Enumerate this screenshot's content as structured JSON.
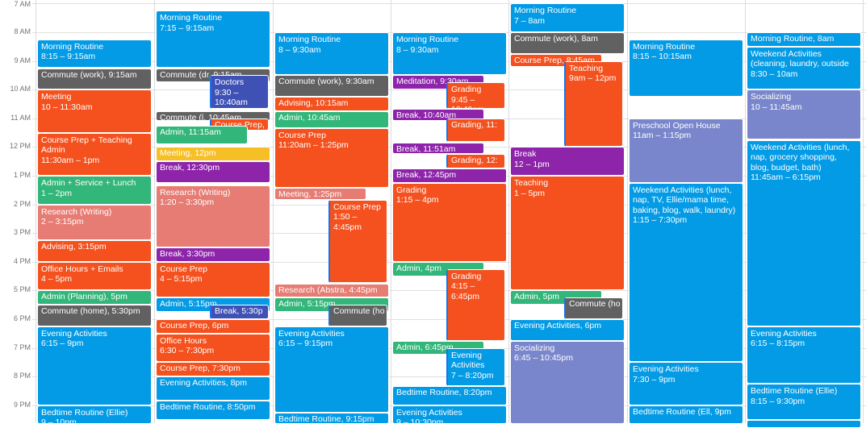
{
  "colors": {
    "blue": "#039be5",
    "gray": "#616161",
    "tomato": "#f4511e",
    "flamingo": "#e67c73",
    "green": "#33b679",
    "yellow": "#f6bf26",
    "purple": "#8e24aa",
    "navy": "#3f51b5",
    "lavender": "#7986cb"
  },
  "hours": [
    "7 AM",
    "8 AM",
    "9 AM",
    "10 AM",
    "11 AM",
    "12 PM",
    "1 PM",
    "2 PM",
    "3 PM",
    "4 PM",
    "5 PM",
    "6 PM",
    "7 PM",
    "8 PM",
    "9 PM"
  ],
  "days": [
    {
      "events": [
        {
          "title": "Morning Routine",
          "time": "8:15 – 9:15am",
          "start": 8.25,
          "end": 9.25,
          "color": "blue",
          "lane": 0,
          "lanes": 1
        },
        {
          "title": "Commute (work)",
          "time": "9:15am",
          "start": 9.25,
          "end": 10.0,
          "color": "gray",
          "lane": 0,
          "lanes": 1,
          "inline": true
        },
        {
          "title": "Meeting",
          "time": "10 – 11:30am",
          "start": 10.0,
          "end": 11.5,
          "color": "tomato",
          "lane": 0,
          "lanes": 1
        },
        {
          "title": "Course Prep + Teaching Admin",
          "time": "11:30am – 1pm",
          "start": 11.5,
          "end": 13.0,
          "color": "tomato",
          "lane": 0,
          "lanes": 1
        },
        {
          "title": "Admin + Service + Lunch",
          "time": "1 – 2pm",
          "start": 13.0,
          "end": 14.0,
          "color": "green",
          "lane": 0,
          "lanes": 1
        },
        {
          "title": "Research (Writing)",
          "time": "2 – 3:15pm",
          "start": 14.0,
          "end": 15.25,
          "color": "flamingo",
          "lane": 0,
          "lanes": 1
        },
        {
          "title": "Advising",
          "time": "3:15pm",
          "start": 15.25,
          "end": 16.0,
          "color": "tomato",
          "lane": 0,
          "lanes": 1,
          "inline": true
        },
        {
          "title": "Office Hours + Emails",
          "time": "4 – 5pm",
          "start": 16.0,
          "end": 17.0,
          "color": "tomato",
          "lane": 0,
          "lanes": 1
        },
        {
          "title": "Admin (Planning)",
          "time": "5pm",
          "start": 17.0,
          "end": 17.5,
          "color": "green",
          "lane": 0,
          "lanes": 1,
          "inline": true
        },
        {
          "title": "Commute (home)",
          "time": "5:30pm",
          "start": 17.5,
          "end": 18.25,
          "color": "gray",
          "lane": 0,
          "lanes": 1,
          "inline": true
        },
        {
          "title": "Evening Activities",
          "time": "6:15 – 9pm",
          "start": 18.25,
          "end": 21.0,
          "color": "blue",
          "lane": 0,
          "lanes": 1
        },
        {
          "title": "Bedtime Routine (Ellie)",
          "time": "9 – 10pm",
          "start": 21.0,
          "end": 22.0,
          "color": "blue",
          "lane": 0,
          "lanes": 1
        }
      ]
    },
    {
      "events": [
        {
          "title": "Morning Routine",
          "time": "7:15 – 9:15am",
          "start": 7.25,
          "end": 9.25,
          "color": "blue",
          "lane": 0,
          "lanes": 1
        },
        {
          "title": "Commute (dr",
          "time": "9:15am",
          "start": 9.25,
          "end": 9.75,
          "color": "gray",
          "lane": 0,
          "lanes": 1,
          "inline": true
        },
        {
          "title": "Doctors",
          "time": "9:30 – 10:40am",
          "start": 9.5,
          "end": 10.667,
          "color": "navy",
          "lane": 1,
          "lanes": 2
        },
        {
          "title": "Commute (l",
          "time": "10:45am",
          "start": 10.75,
          "end": 11.083,
          "color": "gray",
          "lane": 0,
          "lanes": 1,
          "inline": true
        },
        {
          "title": "Course Prep,",
          "time": "",
          "start": 11.0,
          "end": 11.417,
          "color": "tomato",
          "lane": 1,
          "lanes": 2,
          "inline": true
        },
        {
          "title": "Admin",
          "time": "11:15am",
          "start": 11.25,
          "end": 11.917,
          "color": "green",
          "lane": 0,
          "lanes": 1,
          "inline": true,
          "w": 0.8
        },
        {
          "title": "Meeting",
          "time": "12pm",
          "start": 12.0,
          "end": 12.5,
          "color": "yellow",
          "lane": 0,
          "lanes": 1,
          "inline": true
        },
        {
          "title": "Break",
          "time": "12:30pm",
          "start": 12.5,
          "end": 13.25,
          "color": "purple",
          "lane": 0,
          "lanes": 1,
          "inline": true
        },
        {
          "title": "Research (Writing)",
          "time": "1:20 – 3:30pm",
          "start": 13.333,
          "end": 15.5,
          "color": "flamingo",
          "lane": 0,
          "lanes": 1
        },
        {
          "title": "Break",
          "time": "3:30pm",
          "start": 15.5,
          "end": 16.0,
          "color": "purple",
          "lane": 0,
          "lanes": 1,
          "inline": true
        },
        {
          "title": "Course Prep",
          "time": "4 – 5:15pm",
          "start": 16.0,
          "end": 17.25,
          "color": "tomato",
          "lane": 0,
          "lanes": 1
        },
        {
          "title": "Admin",
          "time": "5:15pm",
          "start": 17.25,
          "end": 17.75,
          "color": "blue",
          "lane": 0,
          "lanes": 1,
          "inline": true
        },
        {
          "title": "Break",
          "time": "5:30p",
          "start": 17.5,
          "end": 18.0,
          "color": "navy",
          "lane": 1,
          "lanes": 2,
          "inline": true
        },
        {
          "title": "Course Prep",
          "time": "6pm",
          "start": 18.0,
          "end": 18.5,
          "color": "tomato",
          "lane": 0,
          "lanes": 1,
          "inline": true
        },
        {
          "title": "Office Hours",
          "time": "6:30 – 7:30pm",
          "start": 18.5,
          "end": 19.5,
          "color": "tomato",
          "lane": 0,
          "lanes": 1
        },
        {
          "title": "Course Prep",
          "time": "7:30pm",
          "start": 19.5,
          "end": 20.0,
          "color": "tomato",
          "lane": 0,
          "lanes": 1,
          "inline": true
        },
        {
          "title": "Evening Activities",
          "time": "8pm",
          "start": 20.0,
          "end": 20.833,
          "color": "blue",
          "lane": 0,
          "lanes": 1,
          "inline": true
        },
        {
          "title": "Bedtime Routine",
          "time": "8:50pm",
          "start": 20.833,
          "end": 21.5,
          "color": "blue",
          "lane": 0,
          "lanes": 1,
          "inline": true
        }
      ]
    },
    {
      "events": [
        {
          "title": "Morning Routine",
          "time": "8 – 9:30am",
          "start": 8.0,
          "end": 9.5,
          "color": "blue",
          "lane": 0,
          "lanes": 1
        },
        {
          "title": "Commute (work)",
          "time": "9:30am",
          "start": 9.5,
          "end": 10.25,
          "color": "gray",
          "lane": 0,
          "lanes": 1,
          "inline": true
        },
        {
          "title": "Advising",
          "time": "10:15am",
          "start": 10.25,
          "end": 10.75,
          "color": "tomato",
          "lane": 0,
          "lanes": 1,
          "inline": true
        },
        {
          "title": "Admin",
          "time": "10:45am",
          "start": 10.75,
          "end": 11.333,
          "color": "green",
          "lane": 0,
          "lanes": 1,
          "inline": true
        },
        {
          "title": "Course Prep",
          "time": "11:20am – 1:25pm",
          "start": 11.333,
          "end": 13.417,
          "color": "tomato",
          "lane": 0,
          "lanes": 1
        },
        {
          "title": "Meeting",
          "time": "1:25pm",
          "start": 13.417,
          "end": 13.833,
          "color": "flamingo",
          "lane": 0,
          "lanes": 1,
          "inline": true,
          "w": 0.8
        },
        {
          "title": "Course Prep",
          "time": "1:50 – 4:45pm",
          "start": 13.833,
          "end": 16.75,
          "color": "tomato",
          "lane": 1,
          "lanes": 2
        },
        {
          "title": "Research (Abstra",
          "time": "4:45pm",
          "start": 16.75,
          "end": 17.25,
          "color": "flamingo",
          "lane": 0,
          "lanes": 1,
          "inline": true
        },
        {
          "title": "Admin",
          "time": "5:15pm",
          "start": 17.25,
          "end": 17.75,
          "color": "green",
          "lane": 0,
          "lanes": 1,
          "inline": true
        },
        {
          "title": "Commute (ho",
          "time": "",
          "start": 17.5,
          "end": 18.25,
          "color": "gray",
          "lane": 1,
          "lanes": 2,
          "inline": true
        },
        {
          "title": "Evening Activities",
          "time": "6:15 – 9:15pm",
          "start": 18.25,
          "end": 21.25,
          "color": "blue",
          "lane": 0,
          "lanes": 1
        },
        {
          "title": "Bedtime Routine",
          "time": "9:15pm",
          "start": 21.25,
          "end": 22.0,
          "color": "blue",
          "lane": 0,
          "lanes": 1,
          "inline": true
        }
      ]
    },
    {
      "events": [
        {
          "title": "Morning Routine",
          "time": "8 – 9:30am",
          "start": 8.0,
          "end": 9.5,
          "color": "blue",
          "lane": 0,
          "lanes": 1
        },
        {
          "title": "Meditation",
          "time": "9:30am",
          "start": 9.5,
          "end": 10.0,
          "color": "purple",
          "lane": 0,
          "lanes": 1,
          "inline": true,
          "w": 0.8
        },
        {
          "title": "Grading",
          "time": "9:45 – 10:40am",
          "start": 9.75,
          "end": 10.667,
          "color": "tomato",
          "lane": 1,
          "lanes": 2
        },
        {
          "title": "Break",
          "time": "10:40am",
          "start": 10.667,
          "end": 11.083,
          "color": "purple",
          "lane": 0,
          "lanes": 1,
          "inline": true,
          "w": 0.8
        },
        {
          "title": "Grading",
          "time": "11:",
          "start": 11.0,
          "end": 11.833,
          "color": "tomato",
          "lane": 1,
          "lanes": 2,
          "inline": true
        },
        {
          "title": "Break",
          "time": "11:51am",
          "start": 11.85,
          "end": 12.25,
          "color": "purple",
          "lane": 0,
          "lanes": 1,
          "inline": true,
          "w": 0.8
        },
        {
          "title": "Grading",
          "time": "12:",
          "start": 12.25,
          "end": 12.75,
          "color": "tomato",
          "lane": 1,
          "lanes": 2,
          "inline": true
        },
        {
          "title": "Break",
          "time": "12:45pm",
          "start": 12.75,
          "end": 13.25,
          "color": "purple",
          "lane": 0,
          "lanes": 1,
          "inline": true
        },
        {
          "title": "Grading",
          "time": "1:15 – 4pm",
          "start": 13.25,
          "end": 16.0,
          "color": "tomato",
          "lane": 0,
          "lanes": 1
        },
        {
          "title": "Admin",
          "time": "4pm",
          "start": 16.0,
          "end": 16.5,
          "color": "green",
          "lane": 0,
          "lanes": 1,
          "inline": true,
          "w": 0.8
        },
        {
          "title": "Grading",
          "time": "4:15 – 6:45pm",
          "start": 16.25,
          "end": 18.75,
          "color": "tomato",
          "lane": 1,
          "lanes": 2
        },
        {
          "title": "Admin",
          "time": "6:45pm",
          "start": 18.75,
          "end": 19.25,
          "color": "green",
          "lane": 0,
          "lanes": 1,
          "inline": true,
          "w": 0.8
        },
        {
          "title": "Evening Activities",
          "time": "7 – 8:20pm",
          "start": 19.0,
          "end": 20.333,
          "color": "blue",
          "lane": 1,
          "lanes": 2
        },
        {
          "title": "Bedtime Routine",
          "time": "8:20pm",
          "start": 20.333,
          "end": 21.0,
          "color": "blue",
          "lane": 0,
          "lanes": 1,
          "inline": true
        },
        {
          "title": "Evening Activities",
          "time": "9 – 10:30pm",
          "start": 21.0,
          "end": 22.5,
          "color": "blue",
          "lane": 0,
          "lanes": 1
        }
      ]
    },
    {
      "events": [
        {
          "title": "Morning Routine",
          "time": "7 – 8am",
          "start": 7.0,
          "end": 8.0,
          "color": "blue",
          "lane": 0,
          "lanes": 1
        },
        {
          "title": "Commute (work)",
          "time": "8am",
          "start": 8.0,
          "end": 8.75,
          "color": "gray",
          "lane": 0,
          "lanes": 1,
          "inline": true
        },
        {
          "title": "Course Prep",
          "time": "8:45am",
          "start": 8.75,
          "end": 9.2,
          "color": "tomato",
          "lane": 0,
          "lanes": 1,
          "inline": true,
          "w": 0.8
        },
        {
          "title": "Teaching",
          "time": "9am – 12pm",
          "start": 9.0,
          "end": 12.0,
          "color": "tomato",
          "lane": 1,
          "lanes": 2
        },
        {
          "title": "Break",
          "time": "12 – 1pm",
          "start": 12.0,
          "end": 13.0,
          "color": "purple",
          "lane": 0,
          "lanes": 1
        },
        {
          "title": "Teaching",
          "time": "1 – 5pm",
          "start": 13.0,
          "end": 17.0,
          "color": "tomato",
          "lane": 0,
          "lanes": 1
        },
        {
          "title": "Admin",
          "time": "5pm",
          "start": 17.0,
          "end": 17.5,
          "color": "green",
          "lane": 0,
          "lanes": 1,
          "inline": true,
          "w": 0.8
        },
        {
          "title": "Commute (ho",
          "time": "",
          "start": 17.25,
          "end": 18.0,
          "color": "gray",
          "lane": 1,
          "lanes": 2,
          "inline": true
        },
        {
          "title": "Evening Activities",
          "time": "6pm",
          "start": 18.0,
          "end": 18.75,
          "color": "blue",
          "lane": 0,
          "lanes": 1,
          "inline": true
        },
        {
          "title": "Socializing",
          "time": "6:45 – 10:45pm",
          "start": 18.75,
          "end": 22.75,
          "color": "lavender",
          "lane": 0,
          "lanes": 1
        }
      ]
    },
    {
      "events": [
        {
          "title": "Morning Routine",
          "time": "8:15 – 10:15am",
          "start": 8.25,
          "end": 10.25,
          "color": "blue",
          "lane": 0,
          "lanes": 1
        },
        {
          "title": "Preschool Open House",
          "time": "11am – 1:15pm",
          "start": 11.0,
          "end": 13.25,
          "color": "lavender",
          "lane": 0,
          "lanes": 1
        },
        {
          "title": "Weekend Activities (lunch, nap, TV, Ellie/mama time, baking, blog, walk, laundry)",
          "time": "1:15 – 7:30pm",
          "start": 13.25,
          "end": 19.5,
          "color": "blue",
          "lane": 0,
          "lanes": 1
        },
        {
          "title": "Evening Activities",
          "time": "7:30 – 9pm",
          "start": 19.5,
          "end": 21.0,
          "color": "blue",
          "lane": 0,
          "lanes": 1
        },
        {
          "title": "Bedtime Routine (Ell",
          "time": "9pm",
          "start": 21.0,
          "end": 22.0,
          "color": "blue",
          "lane": 0,
          "lanes": 1,
          "inline": true
        }
      ]
    },
    {
      "events": [
        {
          "title": "Morning Routine",
          "time": "8am",
          "start": 8.0,
          "end": 8.5,
          "color": "blue",
          "lane": 0,
          "lanes": 1,
          "inline": true
        },
        {
          "title": "Weekend Activities (cleaning, laundry, outside",
          "time": "8:30 – 10am",
          "start": 8.5,
          "end": 10.0,
          "color": "blue",
          "lane": 0,
          "lanes": 1
        },
        {
          "title": "Socializing",
          "time": "10 – 11:45am",
          "start": 10.0,
          "end": 11.75,
          "color": "lavender",
          "lane": 0,
          "lanes": 1
        },
        {
          "title": "Weekend Activities (lunch, nap, grocery shopping, blog, budget, bath)",
          "time": "11:45am – 6:15pm",
          "start": 11.75,
          "end": 18.25,
          "color": "blue",
          "lane": 0,
          "lanes": 1
        },
        {
          "title": "Evening Activities",
          "time": "6:15 – 8:15pm",
          "start": 18.25,
          "end": 20.25,
          "color": "blue",
          "lane": 0,
          "lanes": 1
        },
        {
          "title": "Bedtime Routine (Ellie)",
          "time": "8:15 – 9:30pm",
          "start": 20.25,
          "end": 21.5,
          "color": "blue",
          "lane": 0,
          "lanes": 1
        },
        {
          "title": "",
          "time": "",
          "start": 21.5,
          "end": 22.0,
          "color": "blue",
          "lane": 0,
          "lanes": 1,
          "inline": true
        }
      ]
    }
  ]
}
